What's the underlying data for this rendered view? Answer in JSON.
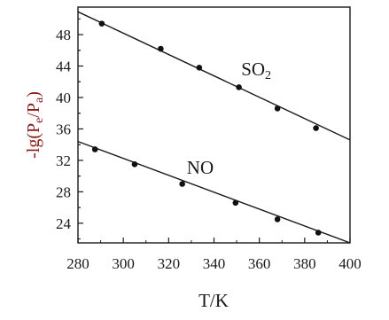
{
  "chart_data": {
    "type": "scatter",
    "title": "",
    "xlabel": "T/K",
    "ylabel_parts": {
      "prefix": "-lg(P",
      "sub_e": "e",
      "mid": "/P",
      "sub_a": "a",
      "suffix": ")"
    },
    "xlim": [
      280,
      400
    ],
    "ylim": [
      21.5,
      51.5
    ],
    "x_ticks": [
      280,
      300,
      320,
      340,
      360,
      380,
      400
    ],
    "y_ticks": [
      24,
      28,
      32,
      36,
      40,
      44,
      48
    ],
    "grid": false,
    "series": [
      {
        "label_main": "SO",
        "label_sub": "2",
        "points": [
          {
            "x": 290.5,
            "y": 49.4
          },
          {
            "x": 316.5,
            "y": 46.2
          },
          {
            "x": 333.5,
            "y": 43.8
          },
          {
            "x": 351,
            "y": 41.3
          },
          {
            "x": 368,
            "y": 38.6
          },
          {
            "x": 385,
            "y": 36.1
          }
        ],
        "fit_line": {
          "x": [
            280,
            400
          ],
          "y": [
            50.9,
            34.6
          ]
        },
        "label_anchor": {
          "x": 352,
          "y": 42.8
        }
      },
      {
        "label_main": "NO",
        "label_sub": "",
        "points": [
          {
            "x": 287.5,
            "y": 33.4
          },
          {
            "x": 305,
            "y": 31.5
          },
          {
            "x": 326,
            "y": 29.0
          },
          {
            "x": 349.5,
            "y": 26.6
          },
          {
            "x": 368,
            "y": 24.5
          },
          {
            "x": 386,
            "y": 22.8
          }
        ],
        "fit_line": {
          "x": [
            280,
            400
          ],
          "y": [
            34.4,
            21.5
          ]
        },
        "label_anchor": {
          "x": 328,
          "y": 30.3
        }
      }
    ]
  }
}
